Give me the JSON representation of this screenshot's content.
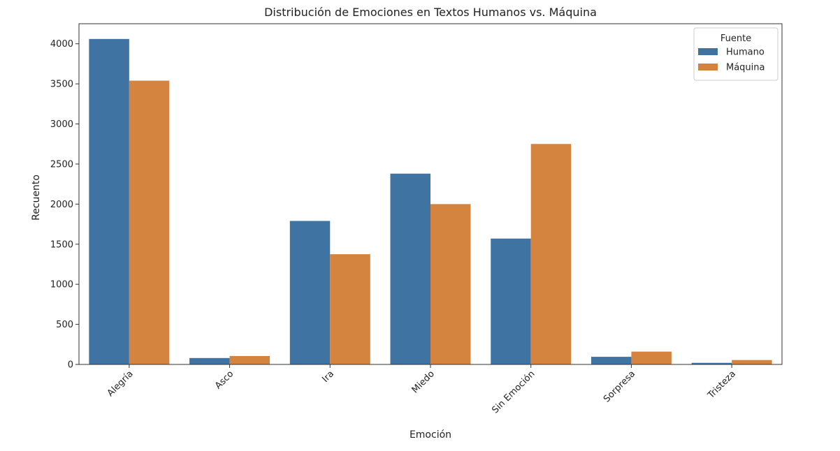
{
  "chart_data": {
    "type": "bar",
    "title": "Distribución de Emociones en Textos Humanos vs. Máquina",
    "xlabel": "Emoción",
    "ylabel": "Recuento",
    "categories": [
      "Alegría",
      "Asco",
      "Ira",
      "Miedo",
      "Sin Emoción",
      "Sorpresa",
      "Tristeza"
    ],
    "series": [
      {
        "name": "Humano",
        "color": "#3f74a2",
        "values": [
          4060,
          80,
          1790,
          2380,
          1570,
          95,
          20
        ]
      },
      {
        "name": "Máquina",
        "color": "#d5843f",
        "values": [
          3540,
          105,
          1375,
          2000,
          2750,
          160,
          55
        ]
      }
    ],
    "ylim": [
      0,
      4250
    ],
    "yticks": [
      0,
      500,
      1000,
      1500,
      2000,
      2500,
      3000,
      3500,
      4000
    ],
    "grid": false,
    "legend": {
      "title": "Fuente",
      "placement": "top-right"
    }
  }
}
